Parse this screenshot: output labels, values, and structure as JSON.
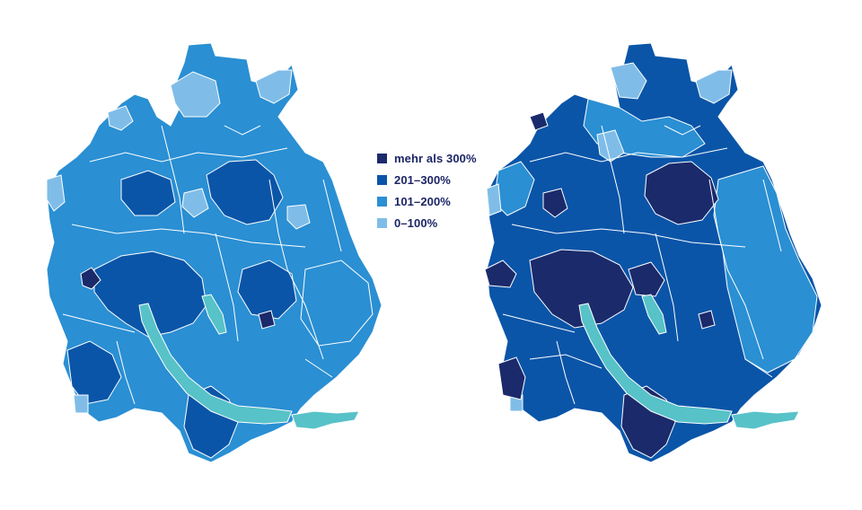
{
  "legend": {
    "items": [
      {
        "label": "mehr als 300%",
        "color": "#1b2a6b"
      },
      {
        "label": "201–300%",
        "color": "#0a55a8"
      },
      {
        "label": "101–200%",
        "color": "#2a8fd3"
      },
      {
        "label": "0–100%",
        "color": "#7fbde8"
      }
    ]
  },
  "colors": {
    "lake": "#57c2c8",
    "border": "#ffffff"
  },
  "maps": [
    {
      "name": "left-map",
      "dominant_class": "101–200%"
    },
    {
      "name": "right-map",
      "dominant_class": "201–300%"
    }
  ]
}
